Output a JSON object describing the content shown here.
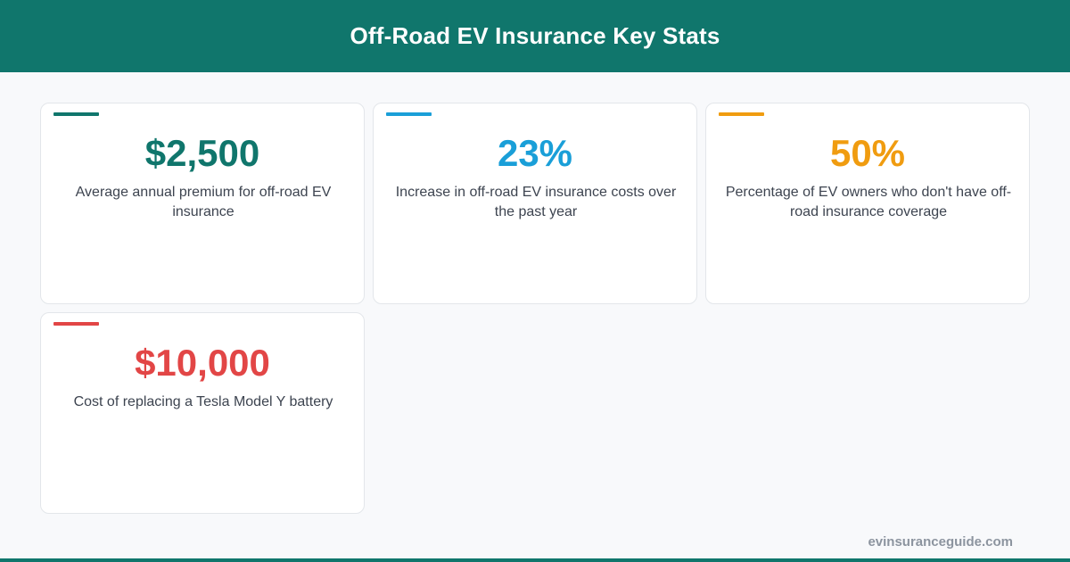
{
  "header": {
    "title": "Off-Road EV Insurance Key Stats",
    "background_color": "#10766c"
  },
  "cards": [
    {
      "value": "$2,500",
      "description": "Average annual premium for off-road EV insurance",
      "color": "#10766c"
    },
    {
      "value": "23%",
      "description": "Increase in off-road EV insurance costs over the past year",
      "color": "#1a9fd8"
    },
    {
      "value": "50%",
      "description": "Percentage of EV owners who don't have off-road insurance coverage",
      "color": "#f09c10"
    },
    {
      "value": "$10,000",
      "description": "Cost of replacing a Tesla Model Y battery",
      "color": "#e24646"
    }
  ],
  "footer": {
    "site": "evinsuranceguide.com"
  }
}
